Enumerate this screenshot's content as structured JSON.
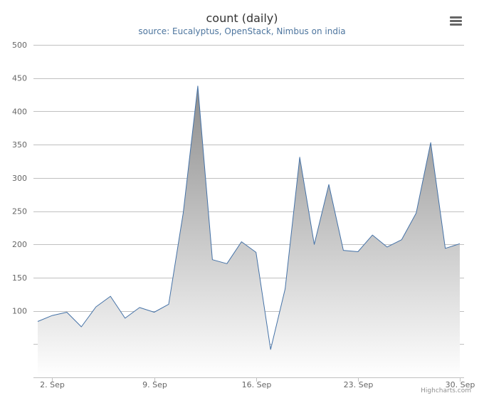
{
  "header": {
    "title": "count (daily)",
    "subtitle": "source: Eucalyptus, OpenStack, Nimbus on india",
    "menu_icon": "hamburger-menu-icon"
  },
  "credits": "Highcharts.com",
  "colors": {
    "line": "#4572a7",
    "area_top": "#8c8c8c",
    "area_bottom": "#ffffff",
    "grid": "#c0c0c0",
    "axis_label": "#666666",
    "subtitle": "#4d759e"
  },
  "chart_data": {
    "type": "area",
    "title": "count (daily)",
    "subtitle": "source: Eucalyptus, OpenStack, Nimbus on india",
    "xlabel": "",
    "ylabel": "",
    "x": [
      "2014-09-01",
      "2014-09-02",
      "2014-09-03",
      "2014-09-04",
      "2014-09-05",
      "2014-09-06",
      "2014-09-07",
      "2014-09-08",
      "2014-09-09",
      "2014-09-10",
      "2014-09-11",
      "2014-09-12",
      "2014-09-13",
      "2014-09-14",
      "2014-09-15",
      "2014-09-16",
      "2014-09-17",
      "2014-09-18",
      "2014-09-19",
      "2014-09-20",
      "2014-09-21",
      "2014-09-22",
      "2014-09-23",
      "2014-09-24",
      "2014-09-25",
      "2014-09-26",
      "2014-09-27",
      "2014-09-28",
      "2014-09-29",
      "2014-09-30"
    ],
    "values": [
      84,
      93,
      98,
      76,
      106,
      122,
      89,
      105,
      98,
      110,
      248,
      438,
      177,
      171,
      204,
      188,
      42,
      133,
      331,
      200,
      290,
      191,
      189,
      214,
      196,
      207,
      247,
      353,
      194,
      201
    ],
    "x_tick_labels": [
      "2. Sep",
      "9. Sep",
      "16. Sep",
      "23. Sep",
      "30. Sep"
    ],
    "x_tick_dates": [
      "2014-09-02",
      "2014-09-09",
      "2014-09-16",
      "2014-09-23",
      "2014-09-30"
    ],
    "y_tick_labels": [
      "100",
      "150",
      "200",
      "250",
      "300",
      "350",
      "400",
      "450",
      "500"
    ],
    "y_gridlines": [
      50,
      100,
      150,
      200,
      250,
      300,
      350,
      400,
      450,
      500
    ],
    "ylim": [
      0,
      500
    ],
    "grid": true,
    "legend": "none"
  }
}
